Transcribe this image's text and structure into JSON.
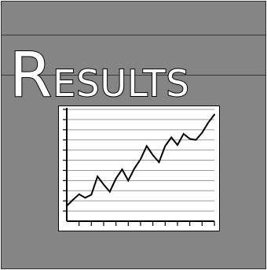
{
  "header": {
    "title_initial": "R",
    "title_rest": "ESULTS"
  },
  "icon": {
    "name": "results-line-chart-icon",
    "colors": {
      "panel": "#858585",
      "card": "#ffffff",
      "line": "#000000"
    }
  },
  "chart_data": {
    "type": "line",
    "title": "",
    "xlabel": "",
    "ylabel": "",
    "x": [
      0,
      1,
      2,
      3,
      4,
      5,
      6,
      7,
      8,
      9,
      10,
      11,
      12,
      13,
      14,
      15,
      16,
      17,
      18,
      19,
      20,
      21,
      22,
      23,
      24
    ],
    "values": [
      3.0,
      4.2,
      5.3,
      4.6,
      5.2,
      8.8,
      7.2,
      5.8,
      8.4,
      10.2,
      8.0,
      10.4,
      12.2,
      14.8,
      13.0,
      11.6,
      14.8,
      16.5,
      15.0,
      17.2,
      16.2,
      16.0,
      17.4,
      19.4,
      21.0
    ],
    "ylim": [
      0,
      22
    ],
    "xlim": [
      0,
      24
    ],
    "grid": true,
    "legend": "none"
  }
}
